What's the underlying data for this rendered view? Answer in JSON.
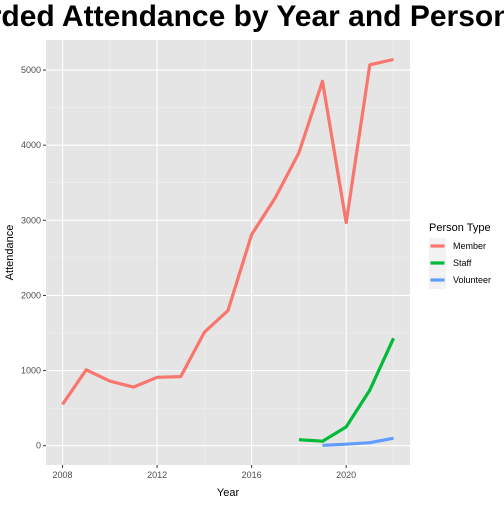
{
  "chart_data": {
    "type": "line",
    "title": "Recorded Attendance by Year and Person Type",
    "xlabel": "Year",
    "ylabel": "Attendance",
    "xlim": [
      2007.3,
      2022.7
    ],
    "ylim": [
      -257,
      5400
    ],
    "x_ticks": [
      2008,
      2012,
      2016,
      2020
    ],
    "y_ticks": [
      0,
      1000,
      2000,
      3000,
      4000,
      5000
    ],
    "grid": true,
    "legend": {
      "title": "Person Type",
      "position": "right"
    },
    "series": [
      {
        "name": "Member",
        "color": "#F8766D",
        "x": [
          2008,
          2009,
          2010,
          2011,
          2012,
          2013,
          2014,
          2015,
          2016,
          2017,
          2018,
          2019,
          2020,
          2021,
          2022
        ],
        "values": [
          550,
          1010,
          860,
          780,
          910,
          920,
          1510,
          1800,
          2810,
          3300,
          3900,
          4850,
          2970,
          5070,
          5140
        ]
      },
      {
        "name": "Staff",
        "color": "#00BA38",
        "x": [
          2018,
          2019,
          2020,
          2021,
          2022
        ],
        "values": [
          80,
          60,
          250,
          740,
          1430
        ]
      },
      {
        "name": "Volunteer",
        "color": "#619CFF",
        "x": [
          2019,
          2020,
          2021,
          2022
        ],
        "values": [
          5,
          20,
          40,
          100
        ]
      }
    ]
  }
}
